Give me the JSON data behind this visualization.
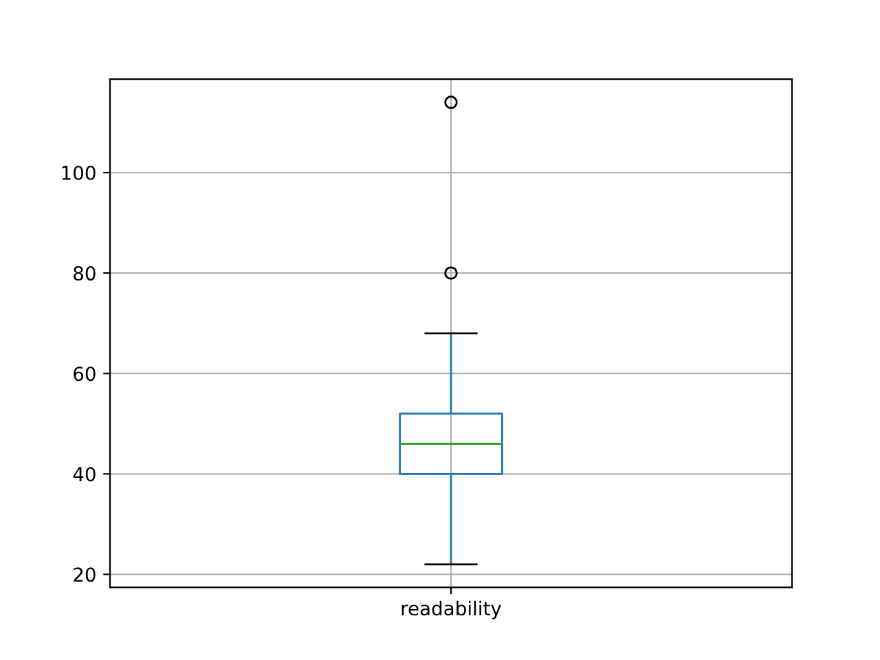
{
  "chart_data": {
    "type": "box",
    "categories": [
      "readability"
    ],
    "boxes": [
      {
        "low": 22,
        "q1": 40,
        "median": 46,
        "q3": 52,
        "high": 68,
        "outliers": [
          80,
          114
        ]
      }
    ],
    "color": "#1f77b4",
    "ylim": [
      17.4,
      118.6
    ],
    "yticks": [
      20,
      40,
      60,
      80,
      100
    ],
    "grid": true
  }
}
